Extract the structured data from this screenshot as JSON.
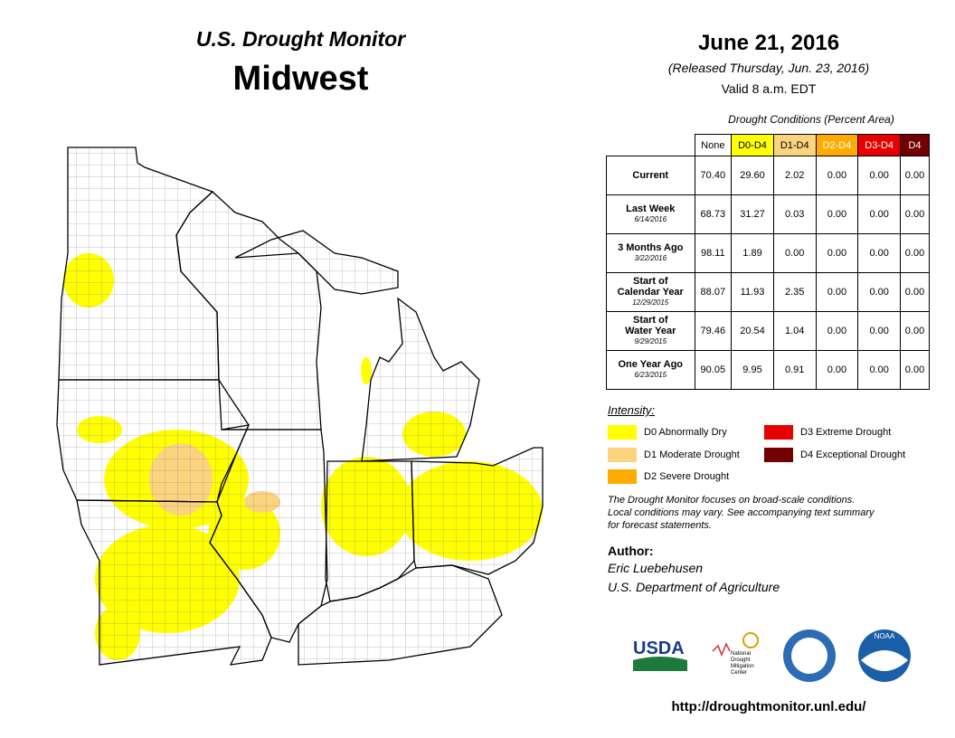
{
  "header": {
    "title": "U.S. Drought Monitor",
    "region": "Midwest",
    "date": "June 21, 2016",
    "released": "(Released Thursday, Jun. 23, 2016)",
    "valid": "Valid  8 a.m. EDT"
  },
  "table": {
    "caption": "Drought Conditions (Percent Area)",
    "columns": [
      {
        "label": "None",
        "color": "#ffffff",
        "text_color": "#000000"
      },
      {
        "label": "D0-D4",
        "color": "#ffff00",
        "text_color": "#000000"
      },
      {
        "label": "D1-D4",
        "color": "#fcd37f",
        "text_color": "#000000"
      },
      {
        "label": "D2-D4",
        "color": "#ffaa00",
        "text_color": "#ffffff"
      },
      {
        "label": "D3-D4",
        "color": "#e60000",
        "text_color": "#ffffff"
      },
      {
        "label": "D4",
        "color": "#730000",
        "text_color": "#ffffff"
      }
    ],
    "rows": [
      {
        "label": [
          "Current"
        ],
        "cells": [
          "70.40",
          "29.60",
          "2.02",
          "0.00",
          "0.00",
          "0.00"
        ]
      },
      {
        "label": [
          "Last Week"
        ],
        "date": "6/14/2016",
        "cells": [
          "68.73",
          "31.27",
          "0.03",
          "0.00",
          "0.00",
          "0.00"
        ]
      },
      {
        "label": [
          "3 Months Ago"
        ],
        "date": "3/22/2016",
        "cells": [
          "98.11",
          "1.89",
          "0.00",
          "0.00",
          "0.00",
          "0.00"
        ]
      },
      {
        "label": [
          "Start of",
          "Calendar Year"
        ],
        "date": "12/29/2015",
        "cells": [
          "88.07",
          "11.93",
          "2.35",
          "0.00",
          "0.00",
          "0.00"
        ]
      },
      {
        "label": [
          "Start of",
          "Water Year"
        ],
        "date": "9/29/2015",
        "cells": [
          "79.46",
          "20.54",
          "1.04",
          "0.00",
          "0.00",
          "0.00"
        ]
      },
      {
        "label": [
          "One Year Ago"
        ],
        "date": "6/23/2015",
        "cells": [
          "90.05",
          "9.95",
          "0.91",
          "0.00",
          "0.00",
          "0.00"
        ]
      }
    ]
  },
  "legend": {
    "title": "Intensity:",
    "items": [
      {
        "label": "D0 Abnormally Dry",
        "color": "#ffff00"
      },
      {
        "label": "D1 Moderate Drought",
        "color": "#fcd37f"
      },
      {
        "label": "D2 Severe Drought",
        "color": "#ffaa00"
      },
      {
        "label": "D3 Extreme Drought",
        "color": "#e60000"
      },
      {
        "label": "D4 Exceptional Drought",
        "color": "#730000"
      }
    ]
  },
  "note": [
    "The Drought Monitor focuses on broad-scale conditions.",
    "Local conditions may vary. See accompanying text summary",
    "for forecast statements."
  ],
  "author": {
    "heading": "Author:",
    "name": "Eric Luebehusen",
    "org": "U.S. Department of Agriculture"
  },
  "logos": {
    "usda": "USDA",
    "ndmc": [
      "National",
      "Drought",
      "Mitigation",
      "Center"
    ],
    "noaa": "NOAA"
  },
  "url": "http://droughtmonitor.unl.edu/"
}
